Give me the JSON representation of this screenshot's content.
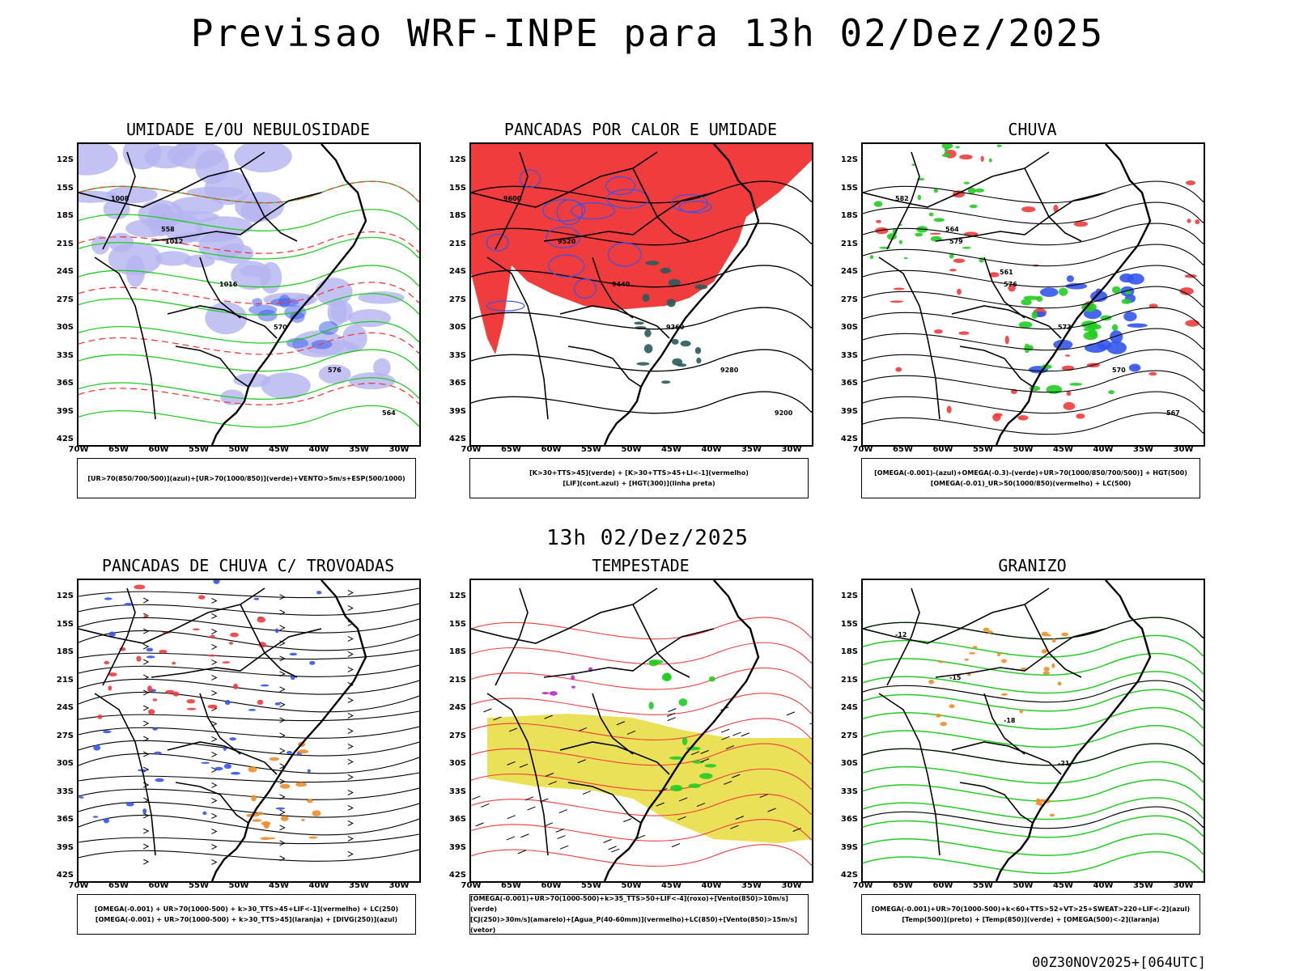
{
  "header": {
    "title": "Previsao WRF-INPE  para 13h 02/Dez/2025"
  },
  "mid_title": "13h 02/Dez/2025",
  "footer": "00Z30NOV2025+[064UTC]",
  "axes": {
    "lat": [
      "12S",
      "15S",
      "18S",
      "21S",
      "24S",
      "27S",
      "30S",
      "33S",
      "36S",
      "39S",
      "42S"
    ],
    "lon": [
      "70W",
      "65W",
      "60W",
      "55W",
      "50W",
      "45W",
      "40W",
      "35W",
      "30W"
    ]
  },
  "panels": [
    {
      "title": "UMIDADE E/OU NEBULOSIDADE",
      "legend": [
        "[UR>70(850/700/500)](azul)+[UR>70(1000/850)](verde)+VENTO>5m/s+ESP(500/1000)"
      ],
      "labels": [
        "1008",
        "1012",
        "1016",
        "570",
        "576",
        "564",
        "558"
      ]
    },
    {
      "title": "PANCADAS POR CALOR E UMIDADE",
      "legend": [
        "[K>30+TTS>45](verde) + [K>30+TTS>45+LI<-1](vermelho)",
        "[LIF](cont.azul) + [HGT(300)](linha preta)"
      ],
      "labels": [
        "9600",
        "9520",
        "9440",
        "9360",
        "9280",
        "9200"
      ]
    },
    {
      "title": "CHUVA",
      "legend": [
        "[OMEGA(-0.001)-(azul)+OMEGA(-0.3)-(verde)+UR>70(1000/850/700/500)] + HGT(500)",
        "[OMEGA(-0.01)_UR>50(1000/850)(vermelho) + LC(500)"
      ],
      "labels": [
        "582",
        "579",
        "576",
        "573",
        "570",
        "567",
        "564",
        "561"
      ]
    },
    {
      "title": "PANCADAS DE CHUVA C/ TROVOADAS",
      "legend": [
        "[OMEGA(-0.001) + UR>70(1000-500) + k>30_TTS>45+LIF<-1](vermelho) + LC(250)",
        "[OMEGA(-0.001) + UR>70(1000-500) + k>30_TTS>45](laranja) + [DIVG(250)](azul)"
      ],
      "labels": []
    },
    {
      "title": "TEMPESTADE",
      "legend": [
        "[OMEGA(-0.001)+UR>70(1000-500)+k>35_TTS>50+LIF<-4](roxo)+[Vento(850)>10m/s](verde)",
        "[CJ(250)>30m/s](amarelo)+[Agua_P(40-60mm)](vermelho)+LC(850)+[Vento(850)>15m/s](vetor)"
      ],
      "labels": []
    },
    {
      "title": "GRANIZO",
      "legend": [
        "[OMEGA(-0.001)+UR>70(1000-500)+k<60+TTS>52+VT>25+SWEAT>220+LIF<-2](azul)",
        "[Temp(500)](preto) + [Temp(850)](verde) + [OMEGA(500)<-2](laranja)"
      ],
      "labels": [
        "-12",
        "-15",
        "-18",
        "-21"
      ]
    }
  ],
  "colors": {
    "red": "#f03c3c",
    "green": "#22cc22",
    "blue": "#3355ee",
    "lavender": "#b4b4f0",
    "yellow": "#e6dc3c",
    "orange": "#f08c28",
    "purple": "#b428c8",
    "teal": "#2a5a5a"
  }
}
